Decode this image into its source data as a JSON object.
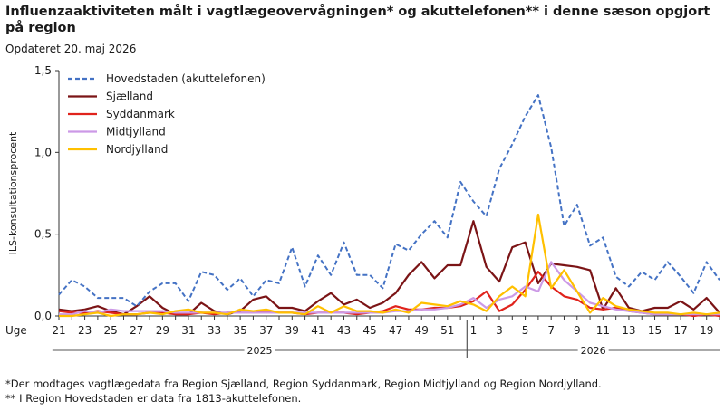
{
  "title": "Influenzaaktiviteten målt i vagtlægeovervågningen* og akuttelefonen** i denne sæson opgjort på region",
  "updated": "Opdateret 20. maj 2026",
  "footnotes": [
    "*Der modtages vagtlægedata fra Region Sjælland, Region Syddanmark, Region Midtjylland og Region Nordjylland.",
    "** I Region Hovedstaden er data fra 1813-akuttelefonen."
  ],
  "chart_data": {
    "type": "line",
    "title": "Influenzaaktiviteten målt i vagtlægeovervågningen* og akuttelefonen** i denne sæson opgjort på region",
    "ylabel": "ILS-konsultationsprocent",
    "xlabel": "Uge",
    "ylim": [
      0,
      1.5
    ],
    "yticks": [
      "0,0",
      "0,5",
      "1,0",
      "1,5"
    ],
    "year_labels": [
      "2025",
      "2026"
    ],
    "x": [
      21,
      22,
      23,
      24,
      25,
      26,
      27,
      28,
      29,
      30,
      31,
      32,
      33,
      34,
      35,
      36,
      37,
      38,
      39,
      40,
      41,
      42,
      43,
      44,
      45,
      46,
      47,
      48,
      49,
      50,
      51,
      52,
      1,
      2,
      3,
      4,
      5,
      6,
      7,
      8,
      9,
      10,
      11,
      12,
      13,
      14,
      15,
      16,
      17,
      18,
      19,
      20
    ],
    "x_ticks": [
      "21",
      "23",
      "25",
      "27",
      "29",
      "31",
      "33",
      "35",
      "37",
      "39",
      "41",
      "43",
      "45",
      "47",
      "49",
      "51",
      "1",
      "3",
      "5",
      "7",
      "9",
      "11",
      "13",
      "15",
      "17",
      "19"
    ],
    "legend_position": "top-left",
    "series": [
      {
        "name": "Hovedstaden (akuttelefonen)",
        "color": "#4472c4",
        "dash": "dashed",
        "values": [
          0.13,
          0.22,
          0.18,
          0.11,
          0.11,
          0.11,
          0.06,
          0.15,
          0.2,
          0.2,
          0.09,
          0.27,
          0.25,
          0.16,
          0.23,
          0.12,
          0.22,
          0.2,
          0.42,
          0.18,
          0.37,
          0.25,
          0.45,
          0.25,
          0.25,
          0.17,
          0.44,
          0.4,
          0.5,
          0.58,
          0.48,
          0.82,
          0.7,
          0.61,
          0.9,
          1.05,
          1.22,
          1.35,
          1.03,
          0.55,
          0.68,
          0.43,
          0.48,
          0.24,
          0.18,
          0.27,
          0.22,
          0.33,
          0.24,
          0.14,
          0.33,
          0.22
        ]
      },
      {
        "name": "Sjælland",
        "color": "#7b1416",
        "dash": "solid",
        "values": [
          0.04,
          0.03,
          0.04,
          0.06,
          0.03,
          0.01,
          0.06,
          0.12,
          0.05,
          0.01,
          0.01,
          0.08,
          0.03,
          0.01,
          0.03,
          0.1,
          0.12,
          0.05,
          0.05,
          0.03,
          0.09,
          0.14,
          0.07,
          0.1,
          0.05,
          0.08,
          0.14,
          0.25,
          0.33,
          0.23,
          0.31,
          0.31,
          0.58,
          0.3,
          0.21,
          0.42,
          0.45,
          0.2,
          0.32,
          0.31,
          0.3,
          0.28,
          0.04,
          0.17,
          0.05,
          0.03,
          0.05,
          0.05,
          0.09,
          0.04,
          0.11,
          0.02
        ]
      },
      {
        "name": "Syddanmark",
        "color": "#e0231c",
        "dash": "solid",
        "values": [
          0.03,
          0.02,
          0.02,
          0.03,
          0.02,
          0.01,
          0.01,
          0.02,
          0.02,
          0.01,
          0.01,
          0.02,
          0.01,
          0.02,
          0.02,
          0.02,
          0.03,
          0.02,
          0.02,
          0.01,
          0.02,
          0.02,
          0.02,
          0.01,
          0.02,
          0.03,
          0.06,
          0.04,
          0.04,
          0.05,
          0.05,
          0.06,
          0.09,
          0.15,
          0.03,
          0.07,
          0.16,
          0.27,
          0.18,
          0.12,
          0.1,
          0.05,
          0.04,
          0.05,
          0.03,
          0.02,
          0.01,
          0.01,
          0.01,
          0.0,
          0.01,
          0.0
        ]
      },
      {
        "name": "Midtjylland",
        "color": "#cc99e6",
        "dash": "solid",
        "values": [
          0.01,
          0.01,
          0.03,
          0.02,
          0.04,
          0.03,
          0.03,
          0.03,
          0.03,
          0.02,
          0.02,
          0.02,
          0.02,
          0.02,
          0.02,
          0.02,
          0.02,
          0.02,
          0.02,
          0.02,
          0.02,
          0.02,
          0.02,
          0.02,
          0.02,
          0.02,
          0.03,
          0.03,
          0.04,
          0.04,
          0.05,
          0.07,
          0.11,
          0.05,
          0.1,
          0.12,
          0.18,
          0.15,
          0.33,
          0.22,
          0.15,
          0.08,
          0.06,
          0.04,
          0.03,
          0.02,
          0.01,
          0.01,
          0.01,
          0.01,
          0.01,
          0.01
        ]
      },
      {
        "name": "Nordjylland",
        "color": "#ffc000",
        "dash": "solid",
        "values": [
          0.0,
          0.0,
          0.01,
          0.02,
          0.0,
          0.01,
          0.01,
          0.02,
          0.01,
          0.03,
          0.04,
          0.02,
          0.02,
          0.01,
          0.04,
          0.03,
          0.04,
          0.02,
          0.02,
          0.01,
          0.06,
          0.02,
          0.06,
          0.03,
          0.03,
          0.02,
          0.04,
          0.02,
          0.08,
          0.07,
          0.06,
          0.09,
          0.07,
          0.03,
          0.12,
          0.18,
          0.12,
          0.62,
          0.17,
          0.28,
          0.15,
          0.02,
          0.11,
          0.06,
          0.04,
          0.03,
          0.02,
          0.02,
          0.01,
          0.02,
          0.01,
          0.02
        ]
      }
    ]
  }
}
